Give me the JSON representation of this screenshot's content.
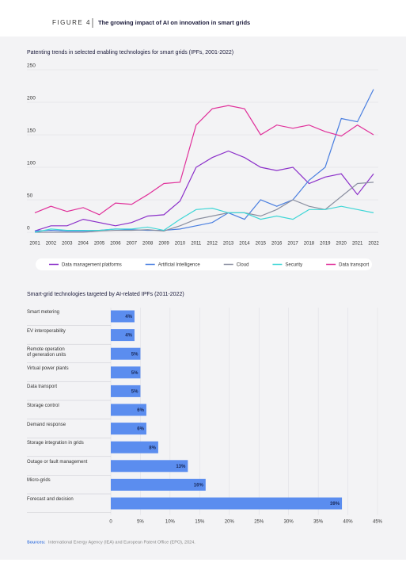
{
  "figure_label": "FIGURE 4",
  "figure_title": "The growing impact of AI on innovation in smart grids",
  "source_label": "Sources:",
  "source_text": "International Energy Agency (IEA) and European Patent Office (EPO), 2024.",
  "chart_data": [
    {
      "type": "line",
      "title": "Patenting trends in selected enabling technologies for smart grids (IPFs, 2001-2022)",
      "categories": [
        "2001",
        "2002",
        "2003",
        "2004",
        "2005",
        "2006",
        "2007",
        "2008",
        "2009",
        "2010",
        "2011",
        "2012",
        "2013",
        "2014",
        "2015",
        "2016",
        "2017",
        "2018",
        "2019",
        "2020",
        "2021",
        "2022"
      ],
      "ylim": [
        0,
        250
      ],
      "yticks": [
        0,
        50,
        100,
        150,
        200,
        250
      ],
      "grid": true,
      "series": [
        {
          "name": "Data management platforms",
          "color": "#8b2fc9",
          "values": [
            2,
            10,
            10,
            20,
            15,
            10,
            15,
            25,
            27,
            48,
            100,
            115,
            125,
            115,
            100,
            95,
            100,
            75,
            85,
            90,
            58,
            90
          ]
        },
        {
          "name": "Artificial Intelligence",
          "color": "#4a7fe0",
          "values": [
            2,
            3,
            2,
            2,
            3,
            5,
            4,
            3,
            3,
            5,
            10,
            15,
            30,
            20,
            50,
            40,
            50,
            80,
            100,
            175,
            170,
            220
          ]
        },
        {
          "name": "Cloud",
          "color": "#8a8fa0",
          "values": [
            0,
            0,
            0,
            0,
            2,
            3,
            3,
            4,
            2,
            10,
            20,
            25,
            30,
            30,
            25,
            35,
            50,
            40,
            35,
            55,
            75,
            77
          ]
        },
        {
          "name": "Security",
          "color": "#3fd6d6",
          "values": [
            0,
            5,
            3,
            3,
            3,
            5,
            5,
            8,
            3,
            20,
            35,
            37,
            30,
            30,
            20,
            25,
            20,
            35,
            35,
            40,
            35,
            30
          ]
        },
        {
          "name": "Data transport",
          "color": "#e0309a",
          "values": [
            30,
            40,
            32,
            38,
            27,
            45,
            43,
            58,
            75,
            77,
            165,
            190,
            195,
            190,
            150,
            165,
            160,
            165,
            155,
            148,
            165,
            150
          ]
        }
      ]
    },
    {
      "type": "hbar",
      "title": "Smart-grid technologies targeted by AI-related IPFs (2011-2022)",
      "color": "#5b8def",
      "categories": [
        "Smart metering",
        "EV interoperability",
        "Remote operation\nof generation units",
        "Virtual power plants",
        "Data transport",
        "Storage control",
        "Demand response",
        "Storage integration in grids",
        "Outage or fault management",
        "Micro-grids",
        "Forecast and decision"
      ],
      "values": [
        4,
        4,
        5,
        5,
        5,
        6,
        6,
        8,
        13,
        16,
        39
      ],
      "value_labels": [
        "4%",
        "4%",
        "5%",
        "5%",
        "5%",
        "6%",
        "6%",
        "8%",
        "13%",
        "16%",
        "39%"
      ],
      "xlim": [
        0,
        45
      ],
      "xticks": [
        0,
        {
          "value": 5,
          "label": "5%"
        },
        {
          "value": 10,
          "label": "10%"
        },
        {
          "value": 15,
          "label": "15%"
        },
        {
          "value": 20,
          "label": "20%"
        },
        {
          "value": 25,
          "label": "25%"
        },
        {
          "value": 30,
          "label": "30%"
        },
        {
          "value": 35,
          "label": "35%"
        },
        {
          "value": 40,
          "label": "40%"
        },
        {
          "value": 45,
          "label": "45%"
        }
      ],
      "grid": true
    }
  ]
}
